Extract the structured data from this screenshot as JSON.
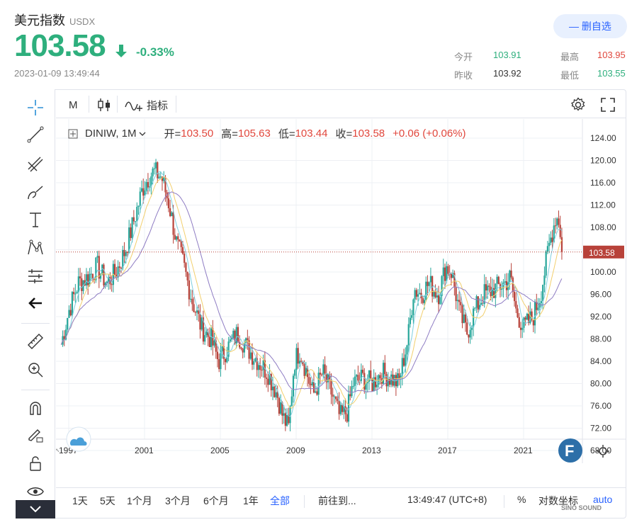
{
  "header": {
    "name": "美元指数",
    "code": "USDX",
    "price": "103.58",
    "change_pct": "-0.33%",
    "timestamp": "2023-01-09 13:49:44",
    "watch_button": "— 删自选",
    "quote": {
      "open_label": "今开",
      "open": "103.91",
      "high_label": "最高",
      "high": "103.95",
      "prev_label": "昨收",
      "prev": "103.92",
      "low_label": "最低",
      "low": "103.55"
    }
  },
  "toolbar": {
    "interval": "M",
    "indicators_label": "指标"
  },
  "legend": {
    "symbol": "DINIW, 1M",
    "open_k": "开=",
    "open_v": "103.50",
    "high_k": "高=",
    "high_v": "105.63",
    "low_k": "低=",
    "low_v": "103.44",
    "close_k": "收=",
    "close_v": "103.58",
    "change": "+0.06 (+0.06%)"
  },
  "bottom": {
    "ranges": [
      "1天",
      "5天",
      "1个月",
      "3个月",
      "6个月",
      "1年",
      "全部"
    ],
    "active_range": "全部",
    "goto": "前往到...",
    "clock": "13:49:47 (UTC+8)",
    "percent": "%",
    "log_label": "对数坐标",
    "auto": "auto"
  },
  "watermark": "SINO SOUND",
  "colors": {
    "up": "#26a69a",
    "down": "#b8423a",
    "ma_short": "#7ecfe0",
    "ma_mid": "#f2cf6d",
    "ma_long": "#8e7cc3",
    "accent": "#2962ff"
  },
  "chart_data": {
    "type": "candlestick",
    "symbol": "DINIW",
    "interval": "1M",
    "x_ticks": [
      "1997",
      "2001",
      "2005",
      "2009",
      "2013",
      "2017",
      "2021"
    ],
    "y_ticks": [
      68,
      72,
      76,
      80,
      84,
      88,
      92,
      96,
      100,
      104,
      108,
      112,
      116,
      120,
      124
    ],
    "ylim": [
      65,
      127
    ],
    "xlim": [
      1996.6,
      2023.2
    ],
    "last_price": 103.58,
    "last_price_label": "103.58",
    "close_series": {
      "x": [
        1996.6,
        1997.0,
        1997.5,
        1998.0,
        1998.5,
        1999.0,
        1999.5,
        2000.0,
        2000.5,
        2000.9,
        2001.2,
        2001.5,
        2001.9,
        2002.3,
        2002.7,
        2003.0,
        2003.5,
        2004.0,
        2004.5,
        2004.9,
        2005.3,
        2005.9,
        2006.5,
        2007.0,
        2007.5,
        2008.0,
        2008.3,
        2008.6,
        2008.9,
        2009.2,
        2009.9,
        2010.4,
        2010.9,
        2011.3,
        2011.7,
        2012.0,
        2012.5,
        2013.0,
        2013.5,
        2014.0,
        2014.4,
        2014.9,
        2015.2,
        2015.6,
        2016.0,
        2016.5,
        2016.9,
        2017.2,
        2017.6,
        2018.0,
        2018.4,
        2018.9,
        2019.5,
        2020.0,
        2020.3,
        2020.6,
        2021.0,
        2021.5,
        2021.9,
        2022.3,
        2022.7,
        2022.9,
        2023.0
      ],
      "y": [
        87,
        93,
        98,
        99,
        101,
        98,
        100,
        104,
        110,
        115,
        117,
        118,
        117,
        112,
        105,
        102,
        95,
        90,
        88,
        84,
        86,
        89,
        86,
        84,
        82,
        78,
        74,
        72,
        84,
        86,
        78,
        82,
        78,
        74,
        75,
        80,
        81,
        80,
        82,
        81,
        80,
        88,
        97,
        96,
        98,
        96,
        101,
        100,
        93,
        89,
        93,
        96,
        97,
        98,
        99,
        93,
        90,
        92,
        96,
        104,
        110,
        109,
        104
      ]
    }
  }
}
